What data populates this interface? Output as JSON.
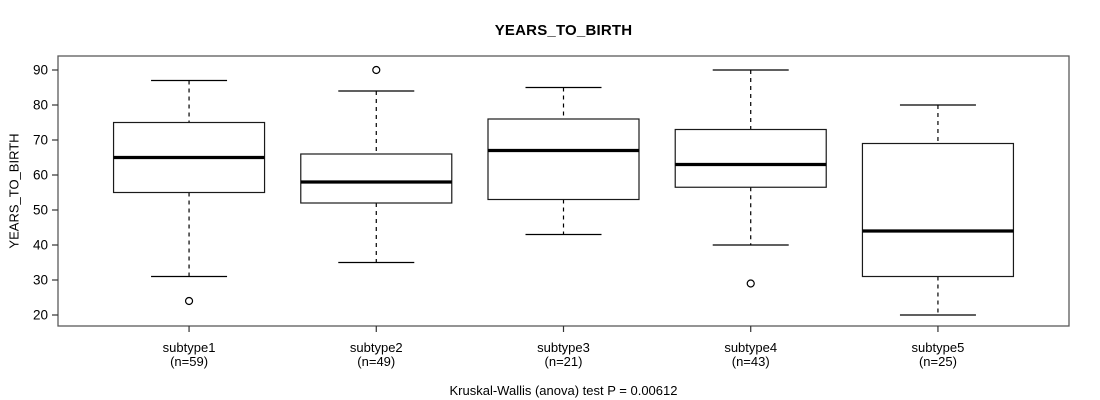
{
  "figure": {
    "title": "YEARS_TO_BIRTH",
    "ylabel": "YEARS_TO_BIRTH",
    "footnote": "Kruskal-Wallis (anova) test P = 0.00612"
  },
  "chart_data": {
    "type": "boxplot",
    "title": "YEARS_TO_BIRTH",
    "xlabel": "",
    "ylabel": "YEARS_TO_BIRTH",
    "ylim": [
      20,
      90
    ],
    "yticks": [
      20,
      30,
      40,
      50,
      60,
      70,
      80,
      90
    ],
    "grid": false,
    "annotation": "Kruskal-Wallis (anova) test P = 0.00612",
    "test": "Kruskal-Wallis (anova)",
    "p_value": 0.00612,
    "groups": [
      {
        "label": "subtype1",
        "sublabel": "(n=59)",
        "n": 59,
        "whisker_low": 31,
        "q1": 55,
        "median": 65,
        "q3": 75,
        "whisker_high": 87,
        "outliers": [
          24
        ]
      },
      {
        "label": "subtype2",
        "sublabel": "(n=49)",
        "n": 49,
        "whisker_low": 35,
        "q1": 52,
        "median": 58,
        "q3": 66,
        "whisker_high": 84,
        "outliers": [
          90
        ]
      },
      {
        "label": "subtype3",
        "sublabel": "(n=21)",
        "n": 21,
        "whisker_low": 43,
        "q1": 53,
        "median": 67,
        "q3": 76,
        "whisker_high": 85,
        "outliers": []
      },
      {
        "label": "subtype4",
        "sublabel": "(n=43)",
        "n": 43,
        "whisker_low": 40,
        "q1": 56.5,
        "median": 63,
        "q3": 73,
        "whisker_high": 90,
        "outliers": [
          29
        ]
      },
      {
        "label": "subtype5",
        "sublabel": "(n=25)",
        "n": 25,
        "whisker_low": 20,
        "q1": 31,
        "median": 44,
        "q3": 69,
        "whisker_high": 80,
        "outliers": []
      }
    ]
  }
}
